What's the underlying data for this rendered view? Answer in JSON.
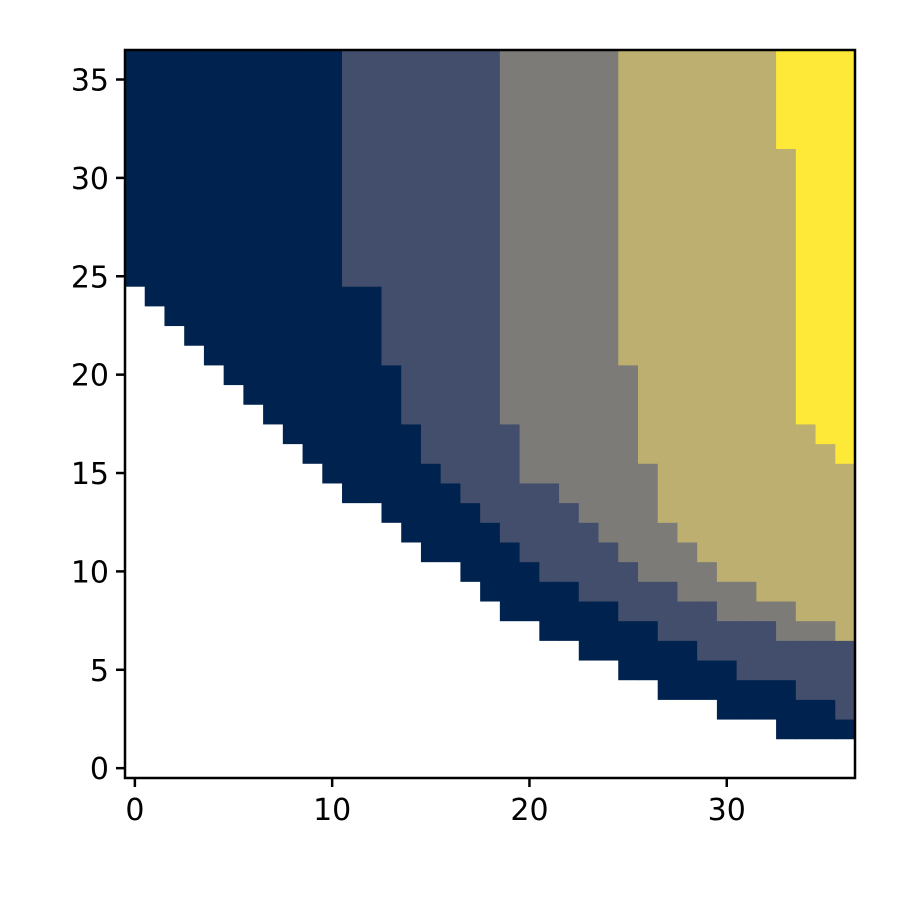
{
  "chart_data": {
    "type": "heatmap",
    "title": "",
    "xlabel": "",
    "ylabel": "",
    "xlim": [
      -0.5,
      36.5
    ],
    "ylim": [
      -0.5,
      36.5
    ],
    "x_ticks": [
      0,
      10,
      20,
      30
    ],
    "x_tick_labels": [
      "0",
      "10",
      "20",
      "30"
    ],
    "y_ticks": [
      0,
      5,
      10,
      15,
      20,
      25,
      30,
      35
    ],
    "y_tick_labels": [
      "0",
      "5",
      "10",
      "15",
      "20",
      "25",
      "30",
      "35"
    ],
    "grid": false,
    "legend": "none",
    "colormap": "cividis",
    "level_colors": [
      "#00224e",
      "#434e6c",
      "#7c7b78",
      "#bcaf6f",
      "#fee838"
    ],
    "lower_bound_y": [
      25,
      24,
      23,
      22,
      21,
      20,
      19,
      18,
      17,
      16,
      15,
      14,
      14,
      13,
      12,
      11,
      11,
      10,
      9,
      8,
      8,
      7,
      7,
      6,
      6,
      5,
      5,
      4,
      4,
      4,
      3,
      3,
      3,
      2,
      2,
      2,
      2
    ],
    "level_boundaries_y": [
      [
        37,
        37,
        37,
        37,
        37,
        37,
        37,
        37,
        37,
        37,
        37,
        25,
        25,
        21,
        18,
        16,
        15,
        14,
        13,
        12,
        11,
        10,
        10,
        9,
        9,
        8,
        8,
        7,
        7,
        6,
        6,
        5,
        5,
        5,
        4,
        4,
        3
      ],
      [
        37,
        37,
        37,
        37,
        37,
        37,
        37,
        37,
        37,
        37,
        37,
        37,
        37,
        37,
        37,
        37,
        37,
        37,
        37,
        18,
        15,
        15,
        14,
        13,
        12,
        11,
        10,
        10,
        9,
        9,
        8,
        8,
        8,
        7,
        7,
        7,
        7
      ],
      [
        37,
        37,
        37,
        37,
        37,
        37,
        37,
        37,
        37,
        37,
        37,
        37,
        37,
        37,
        37,
        37,
        37,
        37,
        37,
        37,
        37,
        37,
        37,
        37,
        37,
        21,
        16,
        13,
        12,
        11,
        10,
        10,
        9,
        9,
        8,
        8,
        7
      ],
      [
        37,
        37,
        37,
        37,
        37,
        37,
        37,
        37,
        37,
        37,
        37,
        37,
        37,
        37,
        37,
        37,
        37,
        37,
        37,
        37,
        37,
        37,
        37,
        37,
        37,
        37,
        37,
        37,
        37,
        37,
        37,
        37,
        37,
        32,
        18,
        17,
        16
      ]
    ]
  }
}
